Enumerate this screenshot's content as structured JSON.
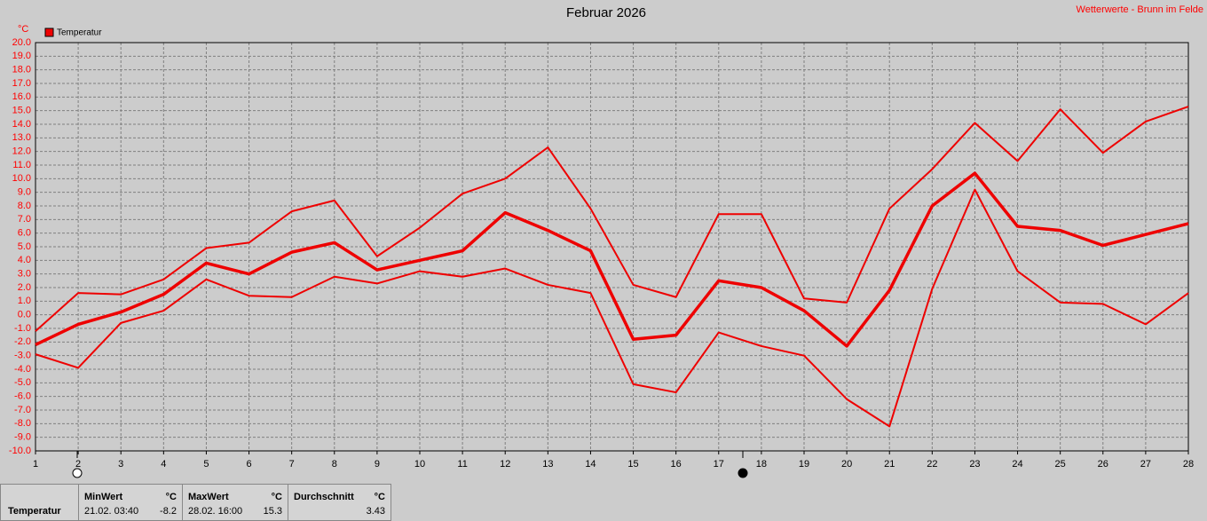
{
  "chart_data": {
    "type": "line",
    "title": "Februar 2026",
    "source": "Wetterwerte - Brunn im Felde",
    "y_unit": "°C",
    "x": [
      1,
      2,
      3,
      4,
      5,
      6,
      7,
      8,
      9,
      10,
      11,
      12,
      13,
      14,
      15,
      16,
      17,
      18,
      19,
      20,
      21,
      22,
      23,
      24,
      25,
      26,
      27,
      28
    ],
    "xlim": [
      1,
      28
    ],
    "xticks": [
      1,
      2,
      3,
      4,
      5,
      6,
      7,
      8,
      9,
      10,
      11,
      12,
      13,
      14,
      15,
      16,
      17,
      18,
      19,
      20,
      21,
      22,
      23,
      24,
      25,
      26,
      27,
      28
    ],
    "ylim": [
      -10,
      20
    ],
    "yticks": [
      {
        "value": -10,
        "label": "-10.0"
      },
      {
        "value": -9,
        "label": "-9.0"
      },
      {
        "value": -8,
        "label": "-8.0"
      },
      {
        "value": -7,
        "label": "-7.0"
      },
      {
        "value": -6,
        "label": "-6.0"
      },
      {
        "value": -5,
        "label": "-5.0"
      },
      {
        "value": -4,
        "label": "-4.0"
      },
      {
        "value": -3,
        "label": "-3.0"
      },
      {
        "value": -2,
        "label": "-2.0"
      },
      {
        "value": -1,
        "label": "-1.0"
      },
      {
        "value": 0,
        "label": "0.0"
      },
      {
        "value": 1,
        "label": "1.0"
      },
      {
        "value": 2,
        "label": "2.0"
      },
      {
        "value": 3,
        "label": "3.0"
      },
      {
        "value": 4,
        "label": "4.0"
      },
      {
        "value": 5,
        "label": "5.0"
      },
      {
        "value": 6,
        "label": "6.0"
      },
      {
        "value": 7,
        "label": "7.0"
      },
      {
        "value": 8,
        "label": "8.0"
      },
      {
        "value": 9,
        "label": "9.0"
      },
      {
        "value": 10,
        "label": "10.0"
      },
      {
        "value": 11,
        "label": "11.0"
      },
      {
        "value": 12,
        "label": "12.0"
      },
      {
        "value": 13,
        "label": "13.0"
      },
      {
        "value": 14,
        "label": "14.0"
      },
      {
        "value": 15,
        "label": "15.0"
      },
      {
        "value": 16,
        "label": "16.0"
      },
      {
        "value": 17,
        "label": "17.0"
      },
      {
        "value": 18,
        "label": "18.0"
      },
      {
        "value": 19,
        "label": "19.0"
      },
      {
        "value": 20,
        "label": "20.0"
      }
    ],
    "grid": true,
    "series": [
      {
        "name": "Temperatur",
        "color": "#ee0000",
        "values": [
          -2.2,
          -0.7,
          0.2,
          1.5,
          3.8,
          3.0,
          4.6,
          5.3,
          3.3,
          4.0,
          4.7,
          7.5,
          6.2,
          4.7,
          -1.8,
          -1.5,
          2.5,
          2.0,
          0.3,
          -2.3,
          1.8,
          8.0,
          10.4,
          6.5,
          6.2,
          5.1,
          5.9,
          6.7
        ],
        "max_values": [
          -1.2,
          1.6,
          1.5,
          2.6,
          4.9,
          5.3,
          7.6,
          8.4,
          4.3,
          6.4,
          8.9,
          10.0,
          12.3,
          7.8,
          2.2,
          1.3,
          7.4,
          7.4,
          1.2,
          0.9,
          7.8,
          10.7,
          14.1,
          11.3,
          15.1,
          11.9,
          14.2,
          15.3
        ],
        "min_values": [
          -2.9,
          -3.9,
          -0.6,
          0.3,
          2.6,
          1.4,
          1.3,
          2.8,
          2.3,
          3.2,
          2.8,
          3.4,
          2.2,
          1.6,
          -5.1,
          -5.7,
          -1.3,
          -2.3,
          -3.0,
          -6.2,
          -8.2,
          1.9,
          9.2,
          3.2,
          0.9,
          0.8,
          -0.7,
          1.6
        ]
      }
    ]
  },
  "summary": {
    "label": "Temperatur",
    "min": {
      "title": "MinWert",
      "unit": "°C",
      "time": "21.02.  03:40",
      "value": -8.2
    },
    "max": {
      "title": "MaxWert",
      "unit": "°C",
      "time": "28.02.  16:00",
      "value": 15.3
    },
    "avg": {
      "title": "Durchschnitt",
      "unit": "°C",
      "value": 3.43
    }
  }
}
